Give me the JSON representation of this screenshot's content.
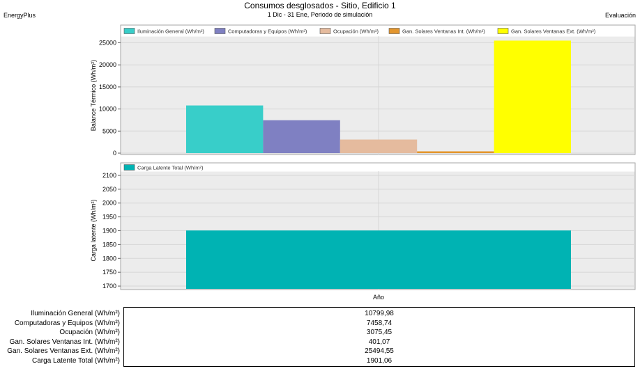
{
  "header": {
    "title": "Consumos desglosados - Sitio, Edificio 1",
    "subtitle": "1 Dic - 31 Ene, Periodo de simulación",
    "left_note": "EnergyPlus",
    "right_note": "Evaluación"
  },
  "chart_data": [
    {
      "type": "bar",
      "ylabel": "Balance Térmico (Wh/m²)",
      "xlabel": "",
      "ylim": [
        0,
        26500
      ],
      "yticks": [
        0,
        5000,
        10000,
        15000,
        20000,
        25000
      ],
      "categories": [
        "Año"
      ],
      "grid": true,
      "legend": "top",
      "series": [
        {
          "name": "Iluminación General (Wh/m²)",
          "values": [
            10799.98
          ],
          "color": "#38CEC9"
        },
        {
          "name": "Computadoras y Equipos (Wh/m²)",
          "values": [
            7458.74
          ],
          "color": "#7F80C2"
        },
        {
          "name": "Ocupación (Wh/m²)",
          "values": [
            3075.45
          ],
          "color": "#E5BB9E"
        },
        {
          "name": "Gan. Solares Ventanas Int. (Wh/m²)",
          "values": [
            401.07
          ],
          "color": "#E3962E"
        },
        {
          "name": "Gan. Solares Ventanas Ext. (Wh/m²)",
          "values": [
            25494.55
          ],
          "color": "#FFFF00"
        }
      ]
    },
    {
      "type": "bar",
      "ylabel": "Carga latente (Wh/m²)",
      "xlabel": "Año",
      "ylim": [
        1690,
        2115
      ],
      "yticks": [
        1700,
        1750,
        1800,
        1850,
        1900,
        1950,
        2000,
        2050,
        2100
      ],
      "categories": [
        "Año"
      ],
      "grid": true,
      "legend": "top",
      "series": [
        {
          "name": "Carga Latente Total (Wh/m²)",
          "values": [
            1901.06
          ],
          "color": "#00B3B3"
        }
      ]
    }
  ],
  "table": {
    "rows": [
      {
        "label": "Iluminación General (Wh/m²)",
        "value": "10799,98"
      },
      {
        "label": "Computadoras y Equipos (Wh/m²)",
        "value": "7458,74"
      },
      {
        "label": "Ocupación (Wh/m²)",
        "value": "3075,45"
      },
      {
        "label": "Gan. Solares Ventanas Int. (Wh/m²)",
        "value": "401,07"
      },
      {
        "label": "Gan. Solares Ventanas Ext. (Wh/m²)",
        "value": "25494,55"
      },
      {
        "label": "Carga Latente Total (Wh/m²)",
        "value": "1901,06"
      }
    ]
  }
}
